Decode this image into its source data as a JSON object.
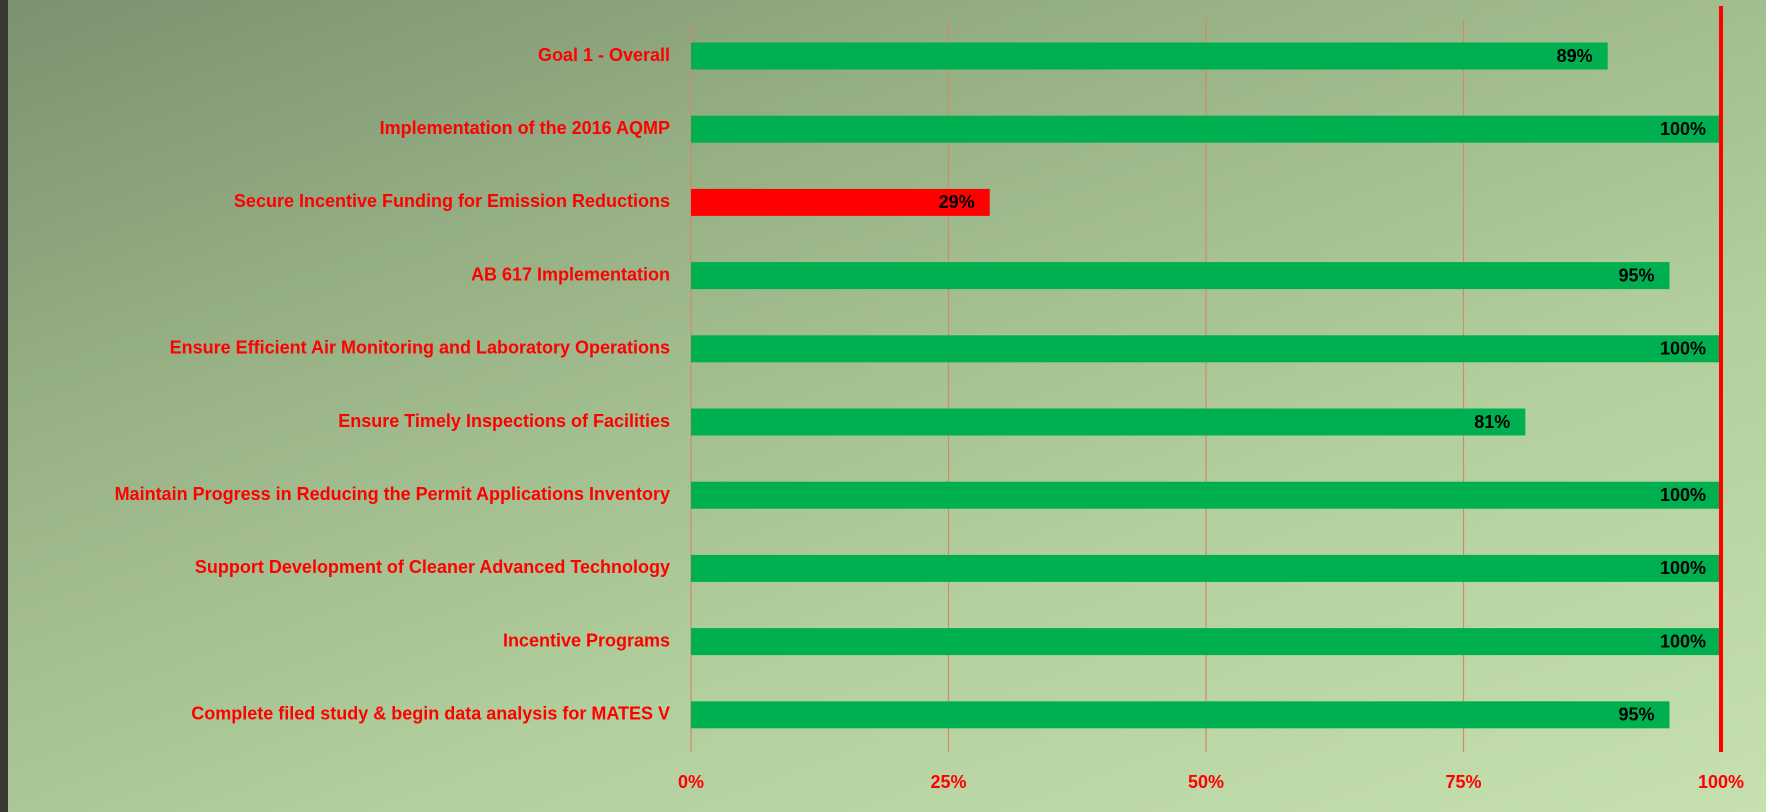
{
  "chart_data": {
    "type": "hbar",
    "categories": [
      "Goal 1 - Overall",
      "Implementation of the 2016 AQMP",
      "Secure Incentive Funding for Emission Reductions",
      "AB 617 Implementation",
      "Ensure Efficient Air Monitoring and Laboratory Operations",
      "Ensure Timely Inspections of Facilities",
      "Maintain Progress in Reducing the Permit Applications Inventory",
      "Support Development of Cleaner Advanced Technology",
      "Incentive Programs",
      "Complete filed study & begin data analysis for MATES V"
    ],
    "values": [
      89,
      100,
      29,
      95,
      100,
      81,
      100,
      100,
      100,
      95
    ],
    "value_labels": [
      "89%",
      "100%",
      "29%",
      "95%",
      "100%",
      "81%",
      "100%",
      "100%",
      "100%",
      "95%"
    ],
    "colors": [
      "#00b050",
      "#00b050",
      "#ff0000",
      "#00b050",
      "#00b050",
      "#00b050",
      "#00b050",
      "#00b050",
      "#00b050",
      "#00b050"
    ],
    "xlim": [
      0,
      100
    ],
    "xticks": [
      {
        "value": 0,
        "label": "0%"
      },
      {
        "value": 25,
        "label": "25%"
      },
      {
        "value": 50,
        "label": "50%"
      },
      {
        "value": 75,
        "label": "75%"
      },
      {
        "value": 100,
        "label": "100%"
      }
    ],
    "grid": true,
    "grid_color": "#d08a6c",
    "target_line": {
      "value": 100,
      "color": "#ff0000"
    }
  }
}
